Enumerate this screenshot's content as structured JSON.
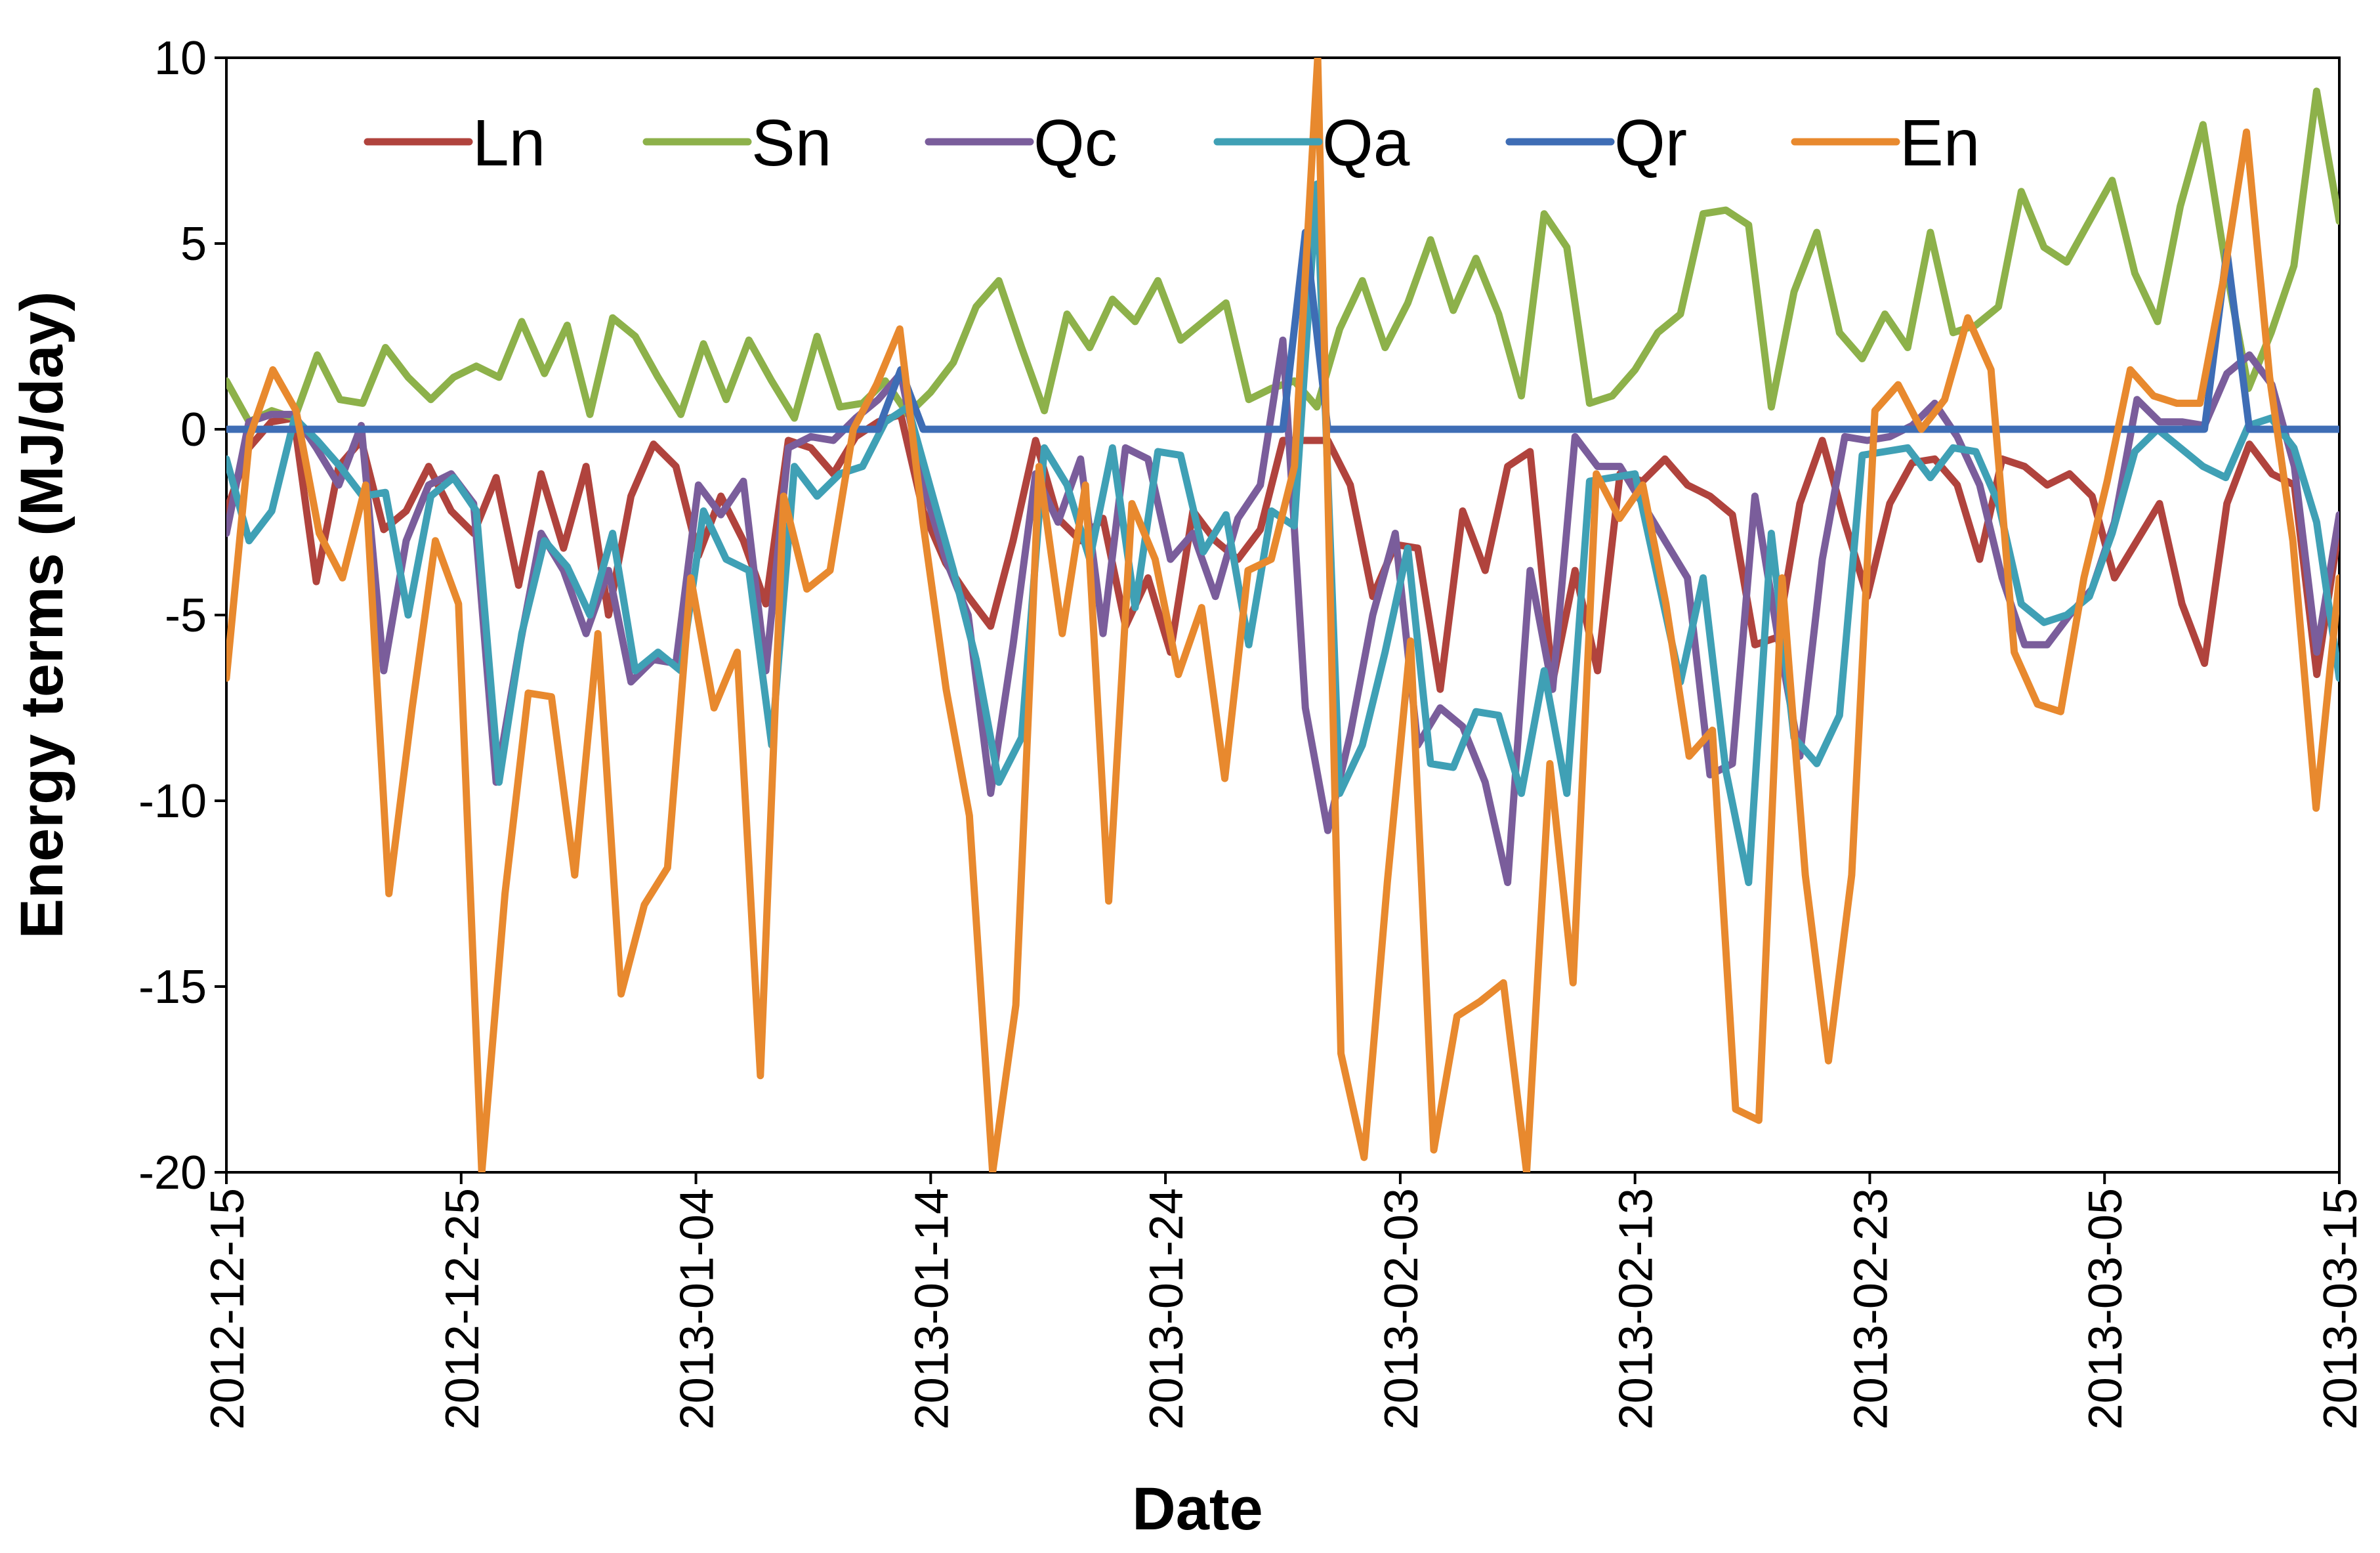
{
  "chart_data": {
    "type": "line",
    "title": "",
    "xlabel": "Date",
    "ylabel": "Energy terms (MJ/day)",
    "ylim": [
      -20,
      10
    ],
    "yticks": [
      10,
      5,
      0,
      -5,
      -10,
      -15,
      -20
    ],
    "ytick_labels": [
      "10",
      "5",
      "0",
      "-5",
      "-10",
      "-15",
      "-20"
    ],
    "xlim": [
      0,
      90
    ],
    "xtick_days": [
      0,
      10,
      20,
      30,
      40,
      50,
      60,
      70,
      80,
      90
    ],
    "xtick_labels": [
      "2012-12-15",
      "2012-12-25",
      "2013-01-04",
      "2013-01-14",
      "2013-01-24",
      "2013-02-03",
      "2013-02-13",
      "2013-02-23",
      "2013-03-05",
      "2013-03-15"
    ],
    "legend_position": "top",
    "grid": false,
    "series": [
      {
        "name": "Ln",
        "color": "#B0433D",
        "values": [
          -2.2,
          -0.5,
          0.2,
          0.3,
          -4.1,
          -1.0,
          -0.3,
          -2.7,
          -2.2,
          -1.0,
          -2.2,
          -2.8,
          -1.3,
          -4.2,
          -1.2,
          -3.2,
          -1.0,
          -5.0,
          -1.8,
          -0.4,
          -1.0,
          -3.4,
          -1.8,
          -3.0,
          -4.7,
          -0.3,
          -0.5,
          -1.2,
          -0.2,
          0.2,
          0.4,
          -2.2,
          -3.6,
          -4.5,
          -5.3,
          -3.0,
          -0.3,
          -2.4,
          -3.0,
          -2.4,
          -5.3,
          -4.0,
          -6.0,
          -2.2,
          -3.0,
          -3.5,
          -2.7,
          -0.3,
          -0.3,
          -0.3,
          -1.5,
          -4.5,
          -3.1,
          -3.2,
          -7.0,
          -2.2,
          -3.8,
          -1.0,
          -0.6,
          -6.8,
          -3.8,
          -6.5,
          -1.2,
          -1.4,
          -0.8,
          -1.5,
          -1.8,
          -2.3,
          -5.8,
          -5.6,
          -2.0,
          -0.3,
          -2.5,
          -4.5,
          -2.0,
          -0.9,
          -0.8,
          -1.5,
          -3.5,
          -0.8,
          -1.0,
          -1.5,
          -1.2,
          -1.8,
          -4.0,
          -3.0,
          -2.0,
          -4.7,
          -6.3,
          -2.0,
          -0.4,
          -1.2,
          -1.5,
          -6.6,
          -2.6
        ]
      },
      {
        "name": "Sn",
        "color": "#8DB14A",
        "values": [
          1.3,
          0.2,
          0.5,
          0.3,
          2.0,
          0.8,
          0.7,
          2.2,
          1.4,
          0.8,
          1.4,
          1.7,
          1.4,
          2.9,
          1.5,
          2.8,
          0.4,
          3.0,
          2.5,
          1.4,
          0.4,
          2.3,
          0.8,
          2.4,
          1.3,
          0.3,
          2.5,
          0.6,
          0.7,
          1.3,
          0.4,
          1.0,
          1.8,
          3.3,
          4.0,
          2.2,
          0.5,
          3.1,
          2.2,
          3.5,
          2.9,
          4.0,
          2.4,
          2.9,
          3.4,
          0.8,
          1.1,
          1.3,
          0.6,
          2.7,
          4.0,
          2.2,
          3.4,
          5.1,
          3.2,
          4.6,
          3.1,
          0.9,
          5.8,
          4.9,
          0.7,
          0.9,
          1.6,
          2.6,
          3.1,
          5.8,
          5.9,
          5.5,
          0.6,
          3.7,
          5.3,
          2.6,
          1.9,
          3.1,
          2.2,
          5.3,
          2.6,
          2.8,
          3.3,
          6.4,
          4.9,
          4.5,
          5.6,
          6.7,
          4.2,
          2.9,
          6.0,
          8.2,
          4.4,
          1.1,
          2.6,
          4.4,
          9.1,
          5.6
        ]
      },
      {
        "name": "Qc",
        "color": "#7A5D9B",
        "values": [
          -2.8,
          0.2,
          0.4,
          0.4,
          -0.5,
          -1.5,
          0.1,
          -6.5,
          -3.0,
          -1.5,
          -1.2,
          -2.0,
          -9.5,
          -6.0,
          -2.8,
          -3.8,
          -5.5,
          -3.8,
          -6.8,
          -6.2,
          -6.3,
          -1.5,
          -2.3,
          -1.4,
          -6.5,
          -0.5,
          -0.2,
          -0.3,
          0.3,
          0.8,
          1.5,
          -1.5,
          -3.5,
          -5.0,
          -9.8,
          -5.8,
          -1.2,
          -2.5,
          -0.8,
          -5.5,
          -0.5,
          -0.8,
          -3.5,
          -2.8,
          -4.5,
          -2.4,
          -1.5,
          2.4,
          -7.5,
          -10.8,
          -8.2,
          -5.0,
          -2.8,
          -8.5,
          -7.5,
          -8.0,
          -9.5,
          -12.2,
          -3.8,
          -7.0,
          -0.2,
          -1.0,
          -1.0,
          -2.0,
          -3.0,
          -4.0,
          -9.3,
          -9.0,
          -1.8,
          -5.5,
          -8.8,
          -3.5,
          -0.2,
          -0.3,
          -0.2,
          0.1,
          0.7,
          -0.2,
          -1.5,
          -4.0,
          -5.8,
          -5.8,
          -5.0,
          -4.3,
          -2.5,
          0.8,
          0.2,
          0.2,
          0.1,
          1.5,
          2.0,
          1.2,
          -1.0,
          -6.0,
          -2.3
        ]
      },
      {
        "name": "Qa",
        "color": "#3FA0B5",
        "values": [
          -0.8,
          -3.0,
          -2.2,
          0.3,
          -0.3,
          -1.0,
          -1.8,
          -1.7,
          -5.0,
          -1.8,
          -1.3,
          -2.2,
          -9.5,
          -5.5,
          -3.0,
          -3.7,
          -5.0,
          -2.8,
          -6.5,
          -6.0,
          -6.5,
          -2.2,
          -3.5,
          -3.8,
          -8.5,
          -1.0,
          -1.8,
          -1.2,
          -1.0,
          0.2,
          0.6,
          -1.6,
          -3.8,
          -6.2,
          -9.5,
          -8.3,
          -0.5,
          -1.5,
          -3.5,
          -0.5,
          -4.8,
          -0.6,
          -0.7,
          -3.3,
          -2.3,
          -5.8,
          -2.2,
          -2.6,
          6.6,
          -9.8,
          -8.5,
          -6.0,
          -3.2,
          -9.0,
          -9.1,
          -7.6,
          -7.7,
          -9.8,
          -6.5,
          -9.8,
          -1.4,
          -1.3,
          -1.2,
          -4.0,
          -6.8,
          -4.0,
          -9.2,
          -12.2,
          -2.8,
          -8.3,
          -9.0,
          -7.7,
          -0.7,
          -0.6,
          -0.5,
          -1.3,
          -0.5,
          -0.6,
          -2.0,
          -4.7,
          -5.2,
          -5.0,
          -4.5,
          -2.8,
          -0.6,
          0.0,
          -0.5,
          -1.0,
          -1.3,
          0.1,
          0.3,
          -0.5,
          -2.5,
          -6.7
        ]
      },
      {
        "name": "Qr",
        "color": "#3E6DB5",
        "values": [
          0.0,
          0.0,
          0.0,
          0.0,
          0.0,
          0.0,
          0.0,
          0.0,
          0.0,
          0.0,
          0.0,
          0.0,
          0.0,
          0.0,
          0.0,
          0.0,
          0.0,
          0.0,
          0.0,
          0.0,
          0.0,
          0.0,
          0.0,
          0.0,
          0.0,
          0.0,
          0.0,
          0.0,
          0.0,
          0.0,
          1.6,
          0.0,
          0.0,
          0.0,
          0.0,
          0.0,
          0.0,
          0.0,
          0.0,
          0.0,
          0.0,
          0.0,
          0.0,
          0.0,
          0.0,
          0.0,
          0.0,
          0.0,
          5.3,
          0.0,
          0.0,
          0.0,
          0.0,
          0.0,
          0.0,
          0.0,
          0.0,
          0.0,
          0.0,
          0.0,
          0.0,
          0.0,
          0.0,
          0.0,
          0.0,
          0.0,
          0.0,
          0.0,
          0.0,
          0.0,
          0.0,
          0.0,
          0.0,
          0.0,
          0.0,
          0.0,
          0.0,
          0.0,
          0.0,
          0.0,
          0.0,
          0.0,
          0.0,
          0.0,
          0.0,
          0.0,
          0.0,
          0.0,
          0.0,
          4.8,
          0.0,
          0.0,
          0.0,
          0.0,
          0.0
        ]
      },
      {
        "name": "En",
        "color": "#E8892E",
        "values": [
          -6.7,
          -0.2,
          1.6,
          0.5,
          -2.8,
          -4.0,
          -1.5,
          -12.5,
          -7.5,
          -3.0,
          -4.7,
          -20.0,
          -12.5,
          -7.1,
          -7.2,
          -12.0,
          -5.5,
          -15.2,
          -12.8,
          -11.8,
          -4.0,
          -7.5,
          -6.0,
          -17.4,
          -1.8,
          -4.3,
          -3.8,
          0.0,
          1.2,
          2.7,
          -2.5,
          -7.0,
          -10.4,
          -20.0,
          -15.5,
          -1.0,
          -5.5,
          -1.5,
          -12.7,
          -2.0,
          -3.5,
          -6.6,
          -4.8,
          -9.4,
          -3.8,
          -3.5,
          -1.0,
          10.0,
          -16.8,
          -19.6,
          -12.2,
          -5.7,
          -19.4,
          -15.8,
          -15.4,
          -14.9,
          -20.0,
          -9.0,
          -14.9,
          -1.2,
          -2.4,
          -1.5,
          -4.7,
          -8.8,
          -8.1,
          -18.3,
          -18.6,
          -4.0,
          -12.0,
          -17.0,
          -12.0,
          0.5,
          1.2,
          0.0,
          0.8,
          3.0,
          1.6,
          -6.0,
          -7.4,
          -7.6,
          -4.0,
          -1.4,
          1.6,
          0.9,
          0.7,
          0.7,
          4.0,
          8.0,
          1.4,
          -3.0,
          -10.2,
          -4.0
        ]
      }
    ]
  }
}
